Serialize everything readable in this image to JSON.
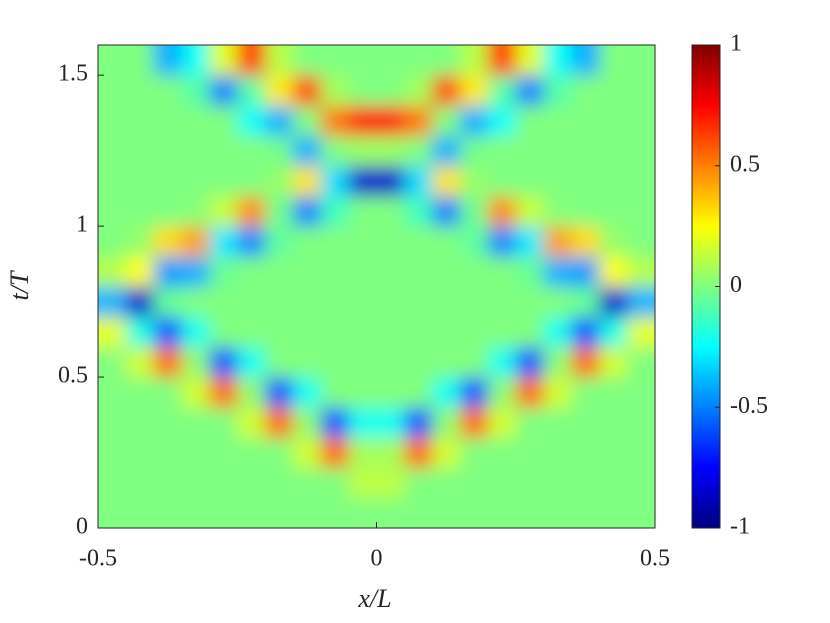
{
  "chart_data": {
    "type": "heatmap",
    "xlabel": "x/L",
    "ylabel": "t/T",
    "colormap": "jet",
    "x": [
      -0.475,
      -0.425,
      -0.375,
      -0.325,
      -0.275,
      -0.225,
      -0.175,
      -0.125,
      -0.075,
      -0.025,
      0.025,
      0.075,
      0.125,
      0.175,
      0.225,
      0.275,
      0.325,
      0.375,
      0.425,
      0.475
    ],
    "y": [
      0.05,
      0.15,
      0.25,
      0.35,
      0.45,
      0.55,
      0.65,
      0.75,
      0.85,
      0.95,
      1.05,
      1.15,
      1.25,
      1.35,
      1.45,
      1.55
    ],
    "values": [
      [
        0,
        0,
        0,
        0,
        0,
        0,
        0,
        0,
        0,
        0,
        0,
        0,
        0,
        0,
        0,
        0,
        0,
        0,
        0,
        0
      ],
      [
        0,
        0,
        0,
        0,
        0,
        0,
        0,
        0,
        0,
        0.12,
        0.12,
        0,
        0,
        0,
        0,
        0,
        0,
        0,
        0,
        0
      ],
      [
        0,
        0,
        0,
        0,
        0,
        0,
        0,
        0.16,
        0.55,
        0.07,
        0.07,
        0.55,
        0.16,
        0,
        0,
        0,
        0,
        0,
        0,
        0
      ],
      [
        0,
        0,
        0,
        0,
        0,
        0.16,
        0.55,
        0.03,
        -0.6,
        -0.22,
        -0.22,
        -0.6,
        0.03,
        0.55,
        0.16,
        0,
        0,
        0,
        0,
        0
      ],
      [
        0,
        0,
        0,
        0.16,
        0.55,
        0.03,
        -0.6,
        -0.22,
        0,
        0,
        0,
        0,
        -0.22,
        -0.6,
        0.03,
        0.55,
        0.16,
        0,
        0,
        0
      ],
      [
        0,
        0.16,
        0.55,
        0.03,
        -0.6,
        -0.22,
        0,
        0,
        0,
        0,
        0,
        0,
        0,
        0,
        -0.22,
        -0.6,
        0.03,
        0.55,
        0.16,
        0
      ],
      [
        0.2,
        -0.2,
        -0.6,
        -0.22,
        0,
        0,
        0,
        0,
        0,
        0,
        0,
        0,
        0,
        0,
        0,
        0,
        -0.22,
        -0.6,
        -0.2,
        0.2
      ],
      [
        -0.4,
        -0.85,
        -0.05,
        0,
        0,
        0,
        0,
        0,
        0,
        0,
        0,
        0,
        0,
        0,
        0,
        0,
        0,
        -0.05,
        -0.85,
        -0.4
      ],
      [
        0.1,
        0.25,
        -0.45,
        -0.41,
        -0.04,
        0,
        0,
        0,
        0,
        0,
        0,
        0,
        0,
        0,
        0,
        -0.04,
        -0.41,
        -0.45,
        0.25,
        0.1
      ],
      [
        0,
        0.04,
        0.32,
        0.44,
        -0.29,
        -0.49,
        -0.06,
        0,
        0,
        0,
        0,
        0,
        0,
        -0.06,
        -0.49,
        -0.29,
        0.44,
        0.32,
        0.04,
        0
      ],
      [
        0,
        0,
        0,
        0.01,
        0.14,
        0.48,
        -0.03,
        -0.5,
        -0.12,
        0,
        0,
        -0.12,
        -0.5,
        -0.03,
        0.48,
        0.14,
        0.01,
        0,
        0,
        0
      ],
      [
        0,
        0,
        0,
        0,
        0,
        0,
        0.04,
        0.3,
        -0.32,
        -0.85,
        -0.85,
        -0.32,
        0.3,
        0.04,
        0,
        0,
        0,
        0,
        0,
        0
      ],
      [
        0,
        0,
        0,
        0,
        0,
        0,
        -0.02,
        -0.41,
        0,
        0.05,
        0.05,
        0,
        -0.41,
        -0.02,
        0,
        0,
        0,
        0,
        0,
        0
      ],
      [
        0,
        0,
        0,
        0,
        0,
        -0.23,
        -0.41,
        0,
        0.51,
        0.74,
        0.74,
        0.51,
        0,
        -0.41,
        -0.23,
        0,
        0,
        0,
        0,
        0
      ],
      [
        0,
        0,
        0,
        -0.08,
        -0.5,
        -0.08,
        0.29,
        0.62,
        0.07,
        0,
        0,
        0.07,
        0.62,
        0.29,
        -0.08,
        -0.5,
        -0.08,
        0,
        0,
        0
      ],
      [
        0,
        0,
        -0.41,
        -0.23,
        0.19,
        0.65,
        0.11,
        0,
        0,
        0,
        0,
        0,
        0,
        0.11,
        0.65,
        0.19,
        -0.23,
        -0.41,
        0,
        0
      ]
    ],
    "xlim": [
      -0.5,
      0.5
    ],
    "ylim": [
      0,
      1.6
    ],
    "xticks": [
      -0.5,
      0,
      0.5
    ],
    "yticks": [
      0,
      0.5,
      1,
      1.5
    ],
    "clim": [
      -1,
      1
    ],
    "cticks": [
      -1,
      -0.5,
      0,
      0.5,
      1
    ]
  }
}
